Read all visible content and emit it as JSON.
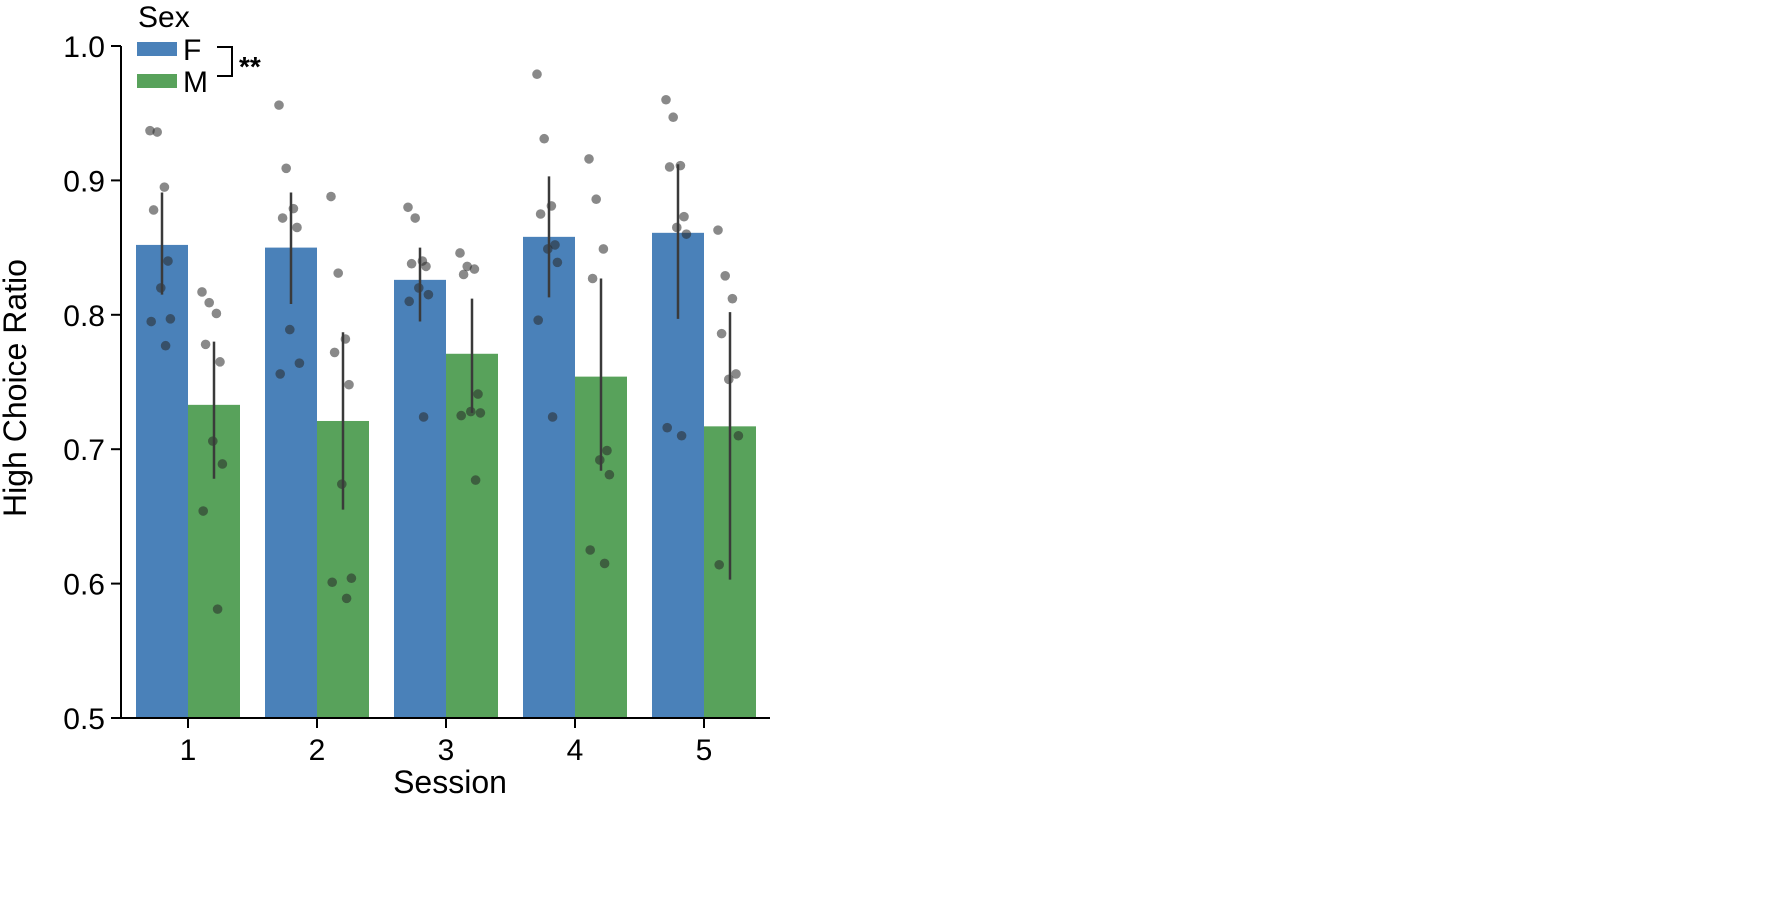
{
  "chart_data": {
    "type": "bar",
    "xlabel": "Session",
    "ylabel": "High Choice Ratio",
    "ylim": [
      0.5,
      1.0
    ],
    "yticks": [
      0.5,
      0.6,
      0.7,
      0.8,
      0.9,
      1.0
    ],
    "ytick_labels": [
      "0.5",
      "0.6",
      "0.7",
      "0.8",
      "0.9",
      "1.0"
    ],
    "categories": [
      "1",
      "2",
      "3",
      "4",
      "5"
    ],
    "grid": false,
    "legend": {
      "title": "Sex",
      "placement": "top-left",
      "significance": "**"
    },
    "series": [
      {
        "name": "F",
        "color": "#4A81B9",
        "values": [
          0.852,
          0.85,
          0.826,
          0.858,
          0.861
        ],
        "err_low": [
          0.815,
          0.808,
          0.795,
          0.813,
          0.797
        ],
        "err_high": [
          0.891,
          0.891,
          0.85,
          0.903,
          0.912
        ],
        "points": [
          [
            0.937,
            0.936,
            0.895,
            0.878,
            0.84,
            0.82,
            0.797,
            0.795,
            0.777
          ],
          [
            0.956,
            0.909,
            0.879,
            0.872,
            0.865,
            0.789,
            0.764,
            0.756
          ],
          [
            0.88,
            0.872,
            0.84,
            0.838,
            0.836,
            0.82,
            0.815,
            0.81,
            0.724
          ],
          [
            0.979,
            0.931,
            0.881,
            0.875,
            0.852,
            0.849,
            0.839,
            0.796,
            0.724
          ],
          [
            0.96,
            0.947,
            0.911,
            0.91,
            0.873,
            0.865,
            0.86,
            0.716,
            0.71
          ]
        ]
      },
      {
        "name": "M",
        "color": "#58A25B",
        "values": [
          0.733,
          0.721,
          0.771,
          0.754,
          0.717
        ],
        "err_low": [
          0.678,
          0.655,
          0.727,
          0.684,
          0.603
        ],
        "err_high": [
          0.78,
          0.787,
          0.812,
          0.827,
          0.802
        ],
        "points": [
          [
            0.817,
            0.809,
            0.801,
            0.778,
            0.765,
            0.706,
            0.689,
            0.654,
            0.581
          ],
          [
            0.888,
            0.831,
            0.782,
            0.772,
            0.748,
            0.674,
            0.604,
            0.601,
            0.589
          ],
          [
            0.846,
            0.836,
            0.834,
            0.83,
            0.741,
            0.728,
            0.727,
            0.725,
            0.677
          ],
          [
            0.916,
            0.886,
            0.849,
            0.827,
            0.699,
            0.692,
            0.681,
            0.625,
            0.615
          ],
          [
            0.863,
            0.829,
            0.812,
            0.786,
            0.756,
            0.752,
            0.71,
            0.614
          ]
        ]
      }
    ]
  }
}
